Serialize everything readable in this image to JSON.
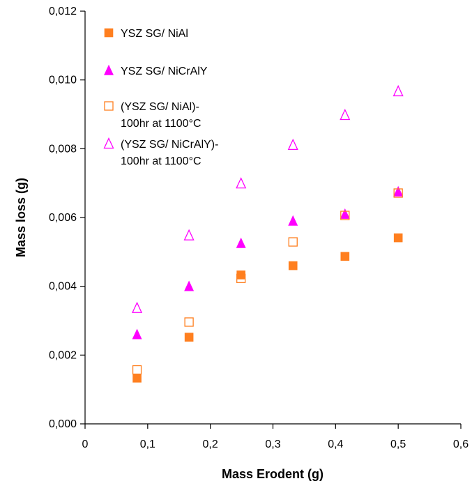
{
  "chart_data": {
    "type": "scatter",
    "title": "",
    "xlabel": "Mass Erodent (g)",
    "ylabel": "Mass loss (g)",
    "xlim": [
      0,
      0.6
    ],
    "ylim": [
      0,
      0.012
    ],
    "xticks": [
      "0",
      "0,1",
      "0,2",
      "0,3",
      "0,4",
      "0,5",
      "0,6"
    ],
    "xtick_values": [
      0,
      0.1,
      0.2,
      0.3,
      0.4,
      0.5,
      0.6
    ],
    "yticks": [
      "0,000",
      "0,002",
      "0,004",
      "0,006",
      "0,008",
      "0,010",
      "0,012"
    ],
    "ytick_values": [
      0,
      0.002,
      0.004,
      0.006,
      0.008,
      0.01,
      0.012
    ],
    "grid": false,
    "legend_position": "top-left",
    "series": [
      {
        "name": "YSZ SG/ NiAl",
        "marker": "square-filled",
        "color": "#FF7F1F",
        "x": [
          0.083,
          0.166,
          0.249,
          0.332,
          0.415,
          0.5
        ],
        "y": [
          0.00133,
          0.00252,
          0.00433,
          0.0046,
          0.00487,
          0.00541
        ]
      },
      {
        "name": "YSZ SG/ NiCrAlY",
        "marker": "triangle-filled",
        "color": "#FF00FF",
        "x": [
          0.083,
          0.166,
          0.249,
          0.332,
          0.415,
          0.5
        ],
        "y": [
          0.0026,
          0.004,
          0.00525,
          0.0059,
          0.0061,
          0.00675
        ]
      },
      {
        "name": "(YSZ SG/ NiAl)-\n100hr at 1100°C",
        "marker": "square-open",
        "color": "#FF7F1F",
        "x": [
          0.083,
          0.166,
          0.249,
          0.332,
          0.415,
          0.5
        ],
        "y": [
          0.00157,
          0.00296,
          0.00423,
          0.00529,
          0.00606,
          0.00671
        ]
      },
      {
        "name": "(YSZ SG/ NiCrAlY)-\n100hr at 1100°C",
        "marker": "triangle-open",
        "color": "#FF00FF",
        "x": [
          0.083,
          0.166,
          0.249,
          0.332,
          0.415,
          0.5
        ],
        "y": [
          0.00337,
          0.00548,
          0.00699,
          0.00811,
          0.00898,
          0.00967
        ]
      }
    ]
  }
}
